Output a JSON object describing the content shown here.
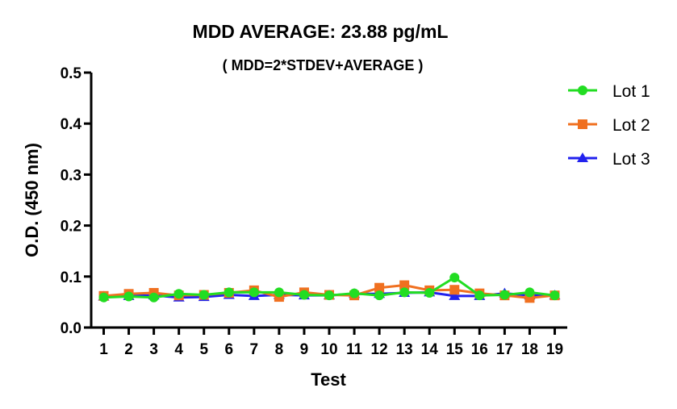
{
  "chart_data": {
    "type": "line",
    "title": "MDD AVERAGE:  23.88 pg/mL",
    "subtitle": "( MDD=2*STDEV+AVERAGE )",
    "xlabel": "Test",
    "ylabel": "O.D. (450 nm)",
    "x": [
      1,
      2,
      3,
      4,
      5,
      6,
      7,
      8,
      9,
      10,
      11,
      12,
      13,
      14,
      15,
      16,
      17,
      18,
      19
    ],
    "xlim": [
      0.5,
      19.5
    ],
    "ylim": [
      0.0,
      0.5
    ],
    "yticks": [
      0.0,
      0.1,
      0.2,
      0.3,
      0.4,
      0.5
    ],
    "ytick_labels": [
      "0.0",
      "0.1",
      "0.2",
      "0.3",
      "0.4",
      "0.5"
    ],
    "grid": false,
    "legend_position": "right",
    "series": [
      {
        "name": "Lot 1",
        "color": "#22dd22",
        "marker": "circle",
        "values": [
          0.059,
          0.061,
          0.059,
          0.066,
          0.064,
          0.069,
          0.069,
          0.069,
          0.064,
          0.063,
          0.067,
          0.063,
          0.069,
          0.068,
          0.098,
          0.063,
          0.064,
          0.069,
          0.063
        ]
      },
      {
        "name": "Lot 2",
        "color": "#f07020",
        "marker": "square",
        "values": [
          0.062,
          0.066,
          0.068,
          0.063,
          0.064,
          0.068,
          0.073,
          0.06,
          0.069,
          0.064,
          0.063,
          0.078,
          0.083,
          0.073,
          0.074,
          0.067,
          0.063,
          0.058,
          0.063
        ]
      },
      {
        "name": "Lot 3",
        "color": "#2222ee",
        "marker": "triangle",
        "values": [
          0.061,
          0.062,
          0.063,
          0.059,
          0.06,
          0.064,
          0.062,
          0.064,
          0.063,
          0.063,
          0.066,
          0.066,
          0.068,
          0.069,
          0.062,
          0.062,
          0.067,
          0.063,
          0.063
        ]
      }
    ]
  }
}
